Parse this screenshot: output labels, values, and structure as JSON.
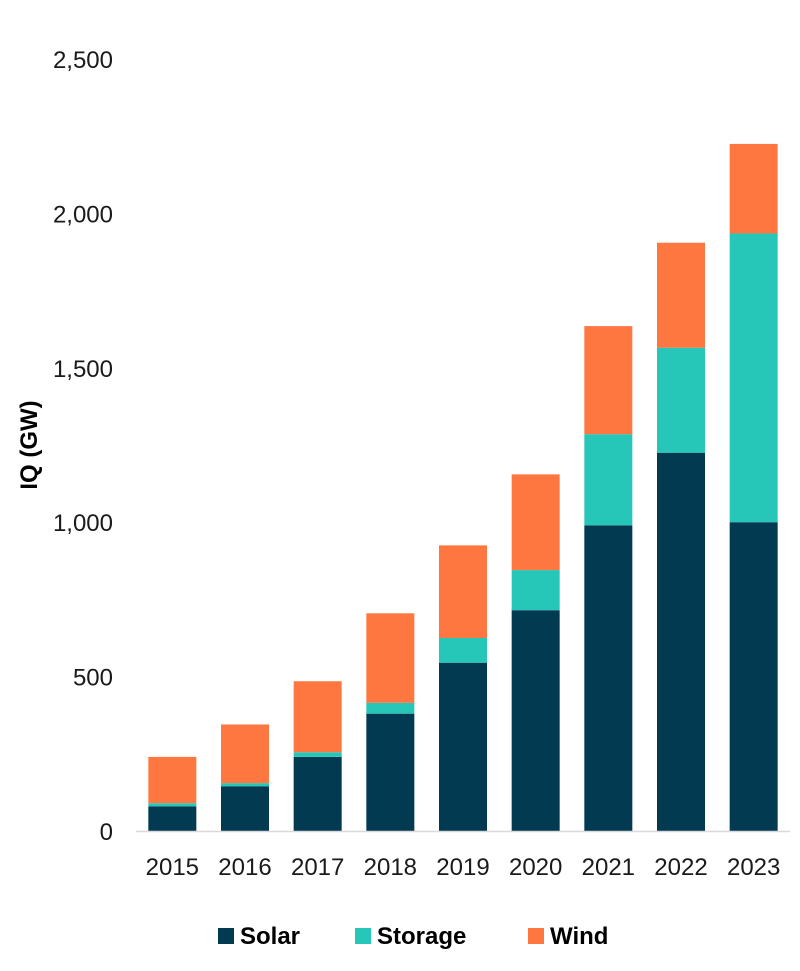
{
  "chart_data": {
    "type": "bar",
    "stacked": true,
    "title": "",
    "xlabel": "",
    "ylabel": "IQ (GW)",
    "ylim": [
      0,
      2500
    ],
    "yticks": [
      0,
      500,
      1000,
      1500,
      2000,
      2500
    ],
    "ytick_labels": [
      "0",
      "500",
      "1,000",
      "1,500",
      "2,000",
      "2,500"
    ],
    "grid": false,
    "legend_position": "bottom",
    "categories": [
      "2015",
      "2016",
      "2017",
      "2018",
      "2019",
      "2020",
      "2021",
      "2022",
      "2023"
    ],
    "series": [
      {
        "name": "Solar",
        "color": "#023a52",
        "values": [
          80,
          145,
          240,
          380,
          545,
          715,
          990,
          1225,
          1000
        ]
      },
      {
        "name": "Storage",
        "color": "#26c6b8",
        "values": [
          10,
          10,
          15,
          35,
          80,
          130,
          295,
          340,
          935
        ]
      },
      {
        "name": "Wind",
        "color": "#fe7740",
        "values": [
          150,
          190,
          230,
          290,
          300,
          310,
          350,
          340,
          290
        ]
      }
    ]
  }
}
